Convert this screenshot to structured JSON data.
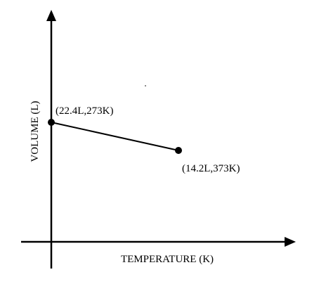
{
  "chart_data": {
    "type": "line",
    "title": "",
    "xlabel": "TEMPERATURE (K)",
    "ylabel": "VOLUME (L)",
    "series": [
      {
        "points": [
          {
            "temperature_K": 273,
            "volume_L": 22.4,
            "label": "(22.4L,273K)"
          },
          {
            "temperature_K": 373,
            "volume_L": 14.2,
            "label": "(14.2L,373K)"
          }
        ]
      }
    ],
    "grid": false,
    "legend": "none"
  },
  "colors": {
    "line": "#000000",
    "axes": "#000000",
    "background": "#ffffff"
  }
}
